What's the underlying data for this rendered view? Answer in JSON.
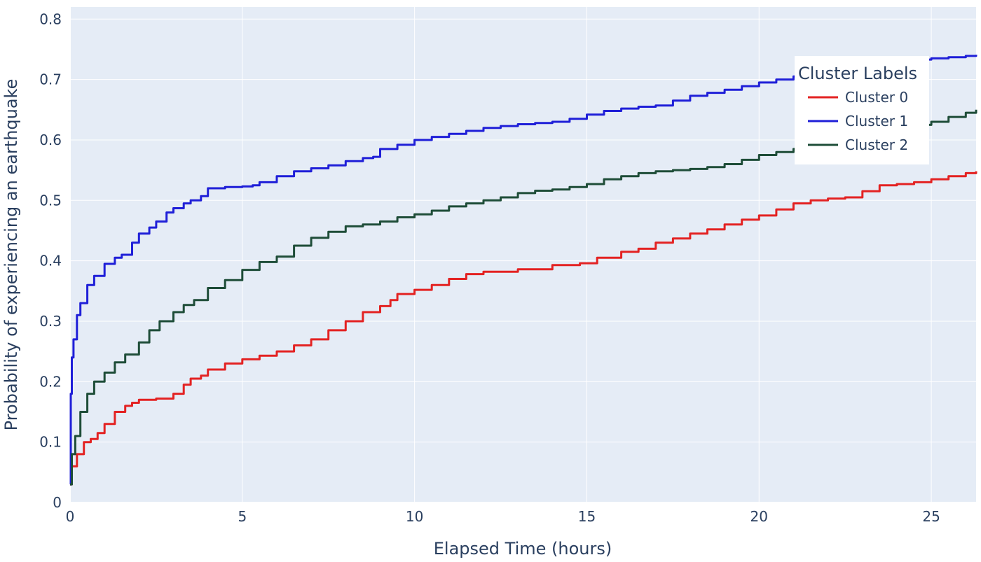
{
  "chart_data": {
    "type": "line",
    "title": "",
    "xlabel": "Elapsed Time (hours)",
    "ylabel": "Probability of experiencing an earthquake",
    "xlim": [
      0,
      26.3
    ],
    "ylim": [
      0,
      0.82
    ],
    "xticks": [
      0,
      5,
      10,
      15,
      20,
      25
    ],
    "xtick_labels": [
      "0",
      "5",
      "10",
      "15",
      "20",
      "25"
    ],
    "yticks": [
      0,
      0.1,
      0.2,
      0.3,
      0.4,
      0.5,
      0.6,
      0.7,
      0.8
    ],
    "ytick_labels": [
      "0",
      "0.1",
      "0.2",
      "0.3",
      "0.4",
      "0.5",
      "0.6",
      "0.7",
      "0.8"
    ],
    "grid": true,
    "legend": {
      "title": "Cluster Labels",
      "position": "top-right"
    },
    "series": [
      {
        "name": "Cluster 0",
        "color": "#e32222",
        "x": [
          0,
          0.05,
          0.2,
          0.4,
          0.6,
          0.8,
          1.0,
          1.3,
          1.6,
          1.8,
          2.0,
          2.5,
          3.0,
          3.3,
          3.5,
          3.8,
          4.0,
          4.5,
          5.0,
          5.5,
          6.0,
          6.5,
          7.0,
          7.5,
          8.0,
          8.5,
          9.0,
          9.3,
          9.5,
          10.0,
          10.5,
          11.0,
          11.5,
          12.0,
          13.0,
          14.0,
          14.8,
          15.3,
          16.0,
          16.5,
          17.0,
          17.5,
          18.0,
          18.5,
          19.0,
          19.5,
          20.0,
          20.5,
          21.0,
          21.5,
          22.0,
          22.5,
          23.0,
          23.5,
          24.0,
          24.5,
          25.0,
          25.5,
          26.0,
          26.3
        ],
        "y": [
          0.03,
          0.06,
          0.08,
          0.1,
          0.105,
          0.115,
          0.13,
          0.15,
          0.16,
          0.165,
          0.17,
          0.172,
          0.18,
          0.195,
          0.205,
          0.21,
          0.22,
          0.23,
          0.237,
          0.243,
          0.25,
          0.26,
          0.27,
          0.285,
          0.3,
          0.315,
          0.325,
          0.335,
          0.345,
          0.352,
          0.36,
          0.37,
          0.378,
          0.382,
          0.386,
          0.393,
          0.396,
          0.405,
          0.415,
          0.42,
          0.43,
          0.437,
          0.445,
          0.452,
          0.46,
          0.468,
          0.475,
          0.485,
          0.495,
          0.5,
          0.503,
          0.505,
          0.515,
          0.525,
          0.527,
          0.53,
          0.535,
          0.54,
          0.545,
          0.548
        ]
      },
      {
        "name": "Cluster 1",
        "color": "#1f1fd8",
        "x": [
          0,
          0.02,
          0.05,
          0.1,
          0.2,
          0.3,
          0.5,
          0.7,
          1.0,
          1.3,
          1.5,
          1.8,
          2.0,
          2.3,
          2.5,
          2.8,
          3.0,
          3.3,
          3.5,
          3.8,
          4.0,
          4.5,
          5.0,
          5.3,
          5.5,
          6.0,
          6.5,
          7.0,
          7.5,
          8.0,
          8.5,
          8.8,
          9.0,
          9.5,
          10.0,
          10.5,
          11.0,
          11.5,
          12.0,
          12.5,
          13.0,
          13.5,
          14.0,
          14.5,
          15.0,
          15.5,
          16.0,
          16.5,
          17.0,
          17.5,
          18.0,
          18.5,
          19.0,
          19.5,
          20.0,
          20.5,
          21.0,
          21.5,
          22.0,
          22.5,
          23.0,
          23.5,
          24.0,
          24.5,
          25.0,
          25.5,
          26.0,
          26.3
        ],
        "y": [
          0.03,
          0.18,
          0.24,
          0.27,
          0.31,
          0.33,
          0.36,
          0.375,
          0.395,
          0.405,
          0.41,
          0.43,
          0.445,
          0.455,
          0.465,
          0.48,
          0.487,
          0.495,
          0.5,
          0.507,
          0.52,
          0.522,
          0.523,
          0.525,
          0.53,
          0.54,
          0.548,
          0.553,
          0.558,
          0.565,
          0.57,
          0.572,
          0.585,
          0.592,
          0.6,
          0.605,
          0.61,
          0.615,
          0.62,
          0.623,
          0.626,
          0.628,
          0.63,
          0.635,
          0.642,
          0.648,
          0.652,
          0.655,
          0.657,
          0.665,
          0.673,
          0.678,
          0.683,
          0.689,
          0.695,
          0.7,
          0.705,
          0.71,
          0.715,
          0.72,
          0.722,
          0.726,
          0.73,
          0.733,
          0.735,
          0.737,
          0.739,
          0.741
        ]
      },
      {
        "name": "Cluster 2",
        "color": "#1e4d38",
        "x": [
          0,
          0.05,
          0.15,
          0.3,
          0.5,
          0.7,
          1.0,
          1.3,
          1.6,
          2.0,
          2.3,
          2.6,
          3.0,
          3.3,
          3.6,
          4.0,
          4.5,
          5.0,
          5.5,
          6.0,
          6.5,
          7.0,
          7.5,
          8.0,
          8.5,
          9.0,
          9.5,
          10.0,
          10.5,
          11.0,
          11.5,
          12.0,
          12.5,
          13.0,
          13.5,
          14.0,
          14.5,
          15.0,
          15.5,
          16.0,
          16.5,
          17.0,
          17.5,
          18.0,
          18.5,
          19.0,
          19.5,
          20.0,
          20.5,
          21.0,
          21.5,
          22.0,
          22.5,
          23.0,
          23.5,
          24.0,
          24.5,
          25.0,
          25.5,
          26.0,
          26.3
        ],
        "y": [
          0.03,
          0.08,
          0.11,
          0.15,
          0.18,
          0.2,
          0.215,
          0.232,
          0.245,
          0.265,
          0.285,
          0.3,
          0.315,
          0.327,
          0.335,
          0.355,
          0.368,
          0.385,
          0.398,
          0.407,
          0.425,
          0.438,
          0.448,
          0.457,
          0.46,
          0.465,
          0.472,
          0.477,
          0.483,
          0.49,
          0.495,
          0.5,
          0.505,
          0.512,
          0.516,
          0.518,
          0.522,
          0.527,
          0.535,
          0.54,
          0.545,
          0.548,
          0.55,
          0.552,
          0.555,
          0.56,
          0.567,
          0.575,
          0.58,
          0.585,
          0.59,
          0.595,
          0.6,
          0.605,
          0.612,
          0.618,
          0.625,
          0.63,
          0.638,
          0.645,
          0.65
        ]
      }
    ]
  }
}
